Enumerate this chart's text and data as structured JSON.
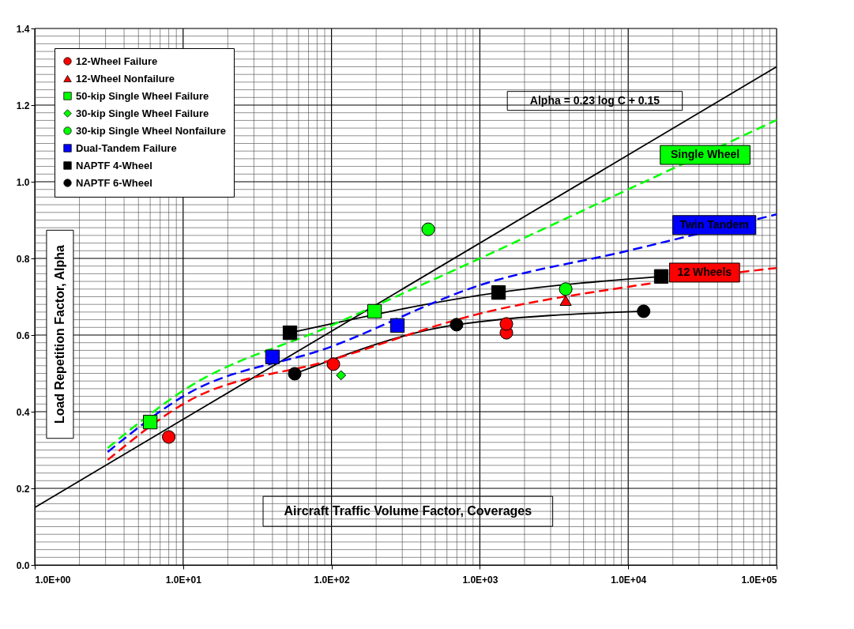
{
  "chart_data": {
    "type": "scatter",
    "xlabel": "Aircraft Traffic Volume Factor, Coverages",
    "ylabel": "Load Repetition Factor, Alpha",
    "log": "x",
    "grid": true,
    "legend": "top left",
    "xlim": [
      1,
      100000
    ],
    "ylim": [
      0,
      1.4
    ],
    "xticks": [
      {
        "value": 1,
        "label": "1.0E+00"
      },
      {
        "value": 10,
        "label": "1.0E+01"
      },
      {
        "value": 100,
        "label": "1.0E+02"
      },
      {
        "value": 1000,
        "label": "1.0E+03"
      },
      {
        "value": 10000,
        "label": "1.0E+04"
      },
      {
        "value": 100000,
        "label": "1.0E+05"
      }
    ],
    "yticks": [
      {
        "value": 0,
        "label": "0.0"
      },
      0.2,
      0.4,
      0.6,
      0.8,
      {
        "value": 1,
        "label": "1.0"
      },
      1.2,
      1.4
    ],
    "series": [
      {
        "name": "12-Wheel Failure",
        "marker": "circle",
        "color": "#ff0000",
        "x": [
          8,
          103,
          1510,
          1510
        ],
        "values": [
          0.334,
          0.524,
          0.606,
          0.629
        ]
      },
      {
        "name": "12-Wheel Nonfailure",
        "marker": "triangle",
        "color": "#ff0000",
        "x": [
          3790
        ],
        "values": [
          0.69
        ]
      },
      {
        "name": "50-kip Single Wheel Failure",
        "marker": "square",
        "color": "#00ff00",
        "x": [
          6,
          195
        ],
        "values": [
          0.373,
          0.662
        ]
      },
      {
        "name": "30-kip Single Wheel Failure",
        "marker": "diamond",
        "color": "#00ff00",
        "x": [
          116
        ],
        "values": [
          0.495
        ]
      },
      {
        "name": "30-kip Single Wheel Nonfailure",
        "marker": "circle",
        "color": "#00ff00",
        "x": [
          449,
          3790
        ],
        "values": [
          0.876,
          0.72
        ]
      },
      {
        "name": "Dual-Tandem Failure",
        "marker": "square",
        "color": "#0000ff",
        "x": [
          40,
          278
        ],
        "values": [
          0.543,
          0.625
        ]
      },
      {
        "name": "NAPTF 4-Wheel",
        "type": "line",
        "marker": "square",
        "line_style": "solid",
        "color": "#000000",
        "x": [
          52.5,
          1336,
          16700
        ],
        "values": [
          0.606,
          0.711,
          0.753
        ]
      },
      {
        "name": "NAPTF 6-Wheel",
        "type": "line",
        "marker": "circle",
        "line_style": "solid",
        "color": "#000000",
        "x": [
          56.5,
          697,
          12700
        ],
        "values": [
          0.499,
          0.627,
          0.662
        ]
      },
      {
        "type": "line",
        "marker": "none",
        "line_style": "solid",
        "color": "#000000",
        "x": [
          1,
          100000
        ],
        "values": [
          0.15,
          1.3
        ]
      },
      {
        "type": "line",
        "marker": "none",
        "line_style": "dashed",
        "color": "#00ff00",
        "x": [
          3.1,
          10,
          100,
          1000,
          10000,
          100000
        ],
        "values": [
          0.305,
          0.455,
          0.625,
          0.8,
          0.98,
          1.161
        ]
      },
      {
        "type": "line",
        "marker": "none",
        "line_style": "dashed",
        "color": "#0000ff",
        "x": [
          3.1,
          10,
          100,
          1000,
          10000,
          100000
        ],
        "values": [
          0.295,
          0.44,
          0.57,
          0.73,
          0.82,
          0.915
        ]
      },
      {
        "type": "line",
        "marker": "none",
        "line_style": "dashed",
        "color": "#ff0000",
        "x": [
          3.1,
          10,
          100,
          1000,
          10000,
          100000
        ],
        "values": [
          0.274,
          0.42,
          0.535,
          0.656,
          0.726,
          0.775
        ]
      }
    ],
    "annotations": [
      "Alpha = 0.23 log C + 0.15",
      {
        "text": "Single Wheel",
        "x": 33000,
        "y": 1.07
      },
      {
        "text": "Twin Tandem",
        "x": 38000,
        "y": 0.887
      },
      {
        "text": "12 Wheels",
        "x": 32700,
        "y": 0.763
      }
    ]
  }
}
